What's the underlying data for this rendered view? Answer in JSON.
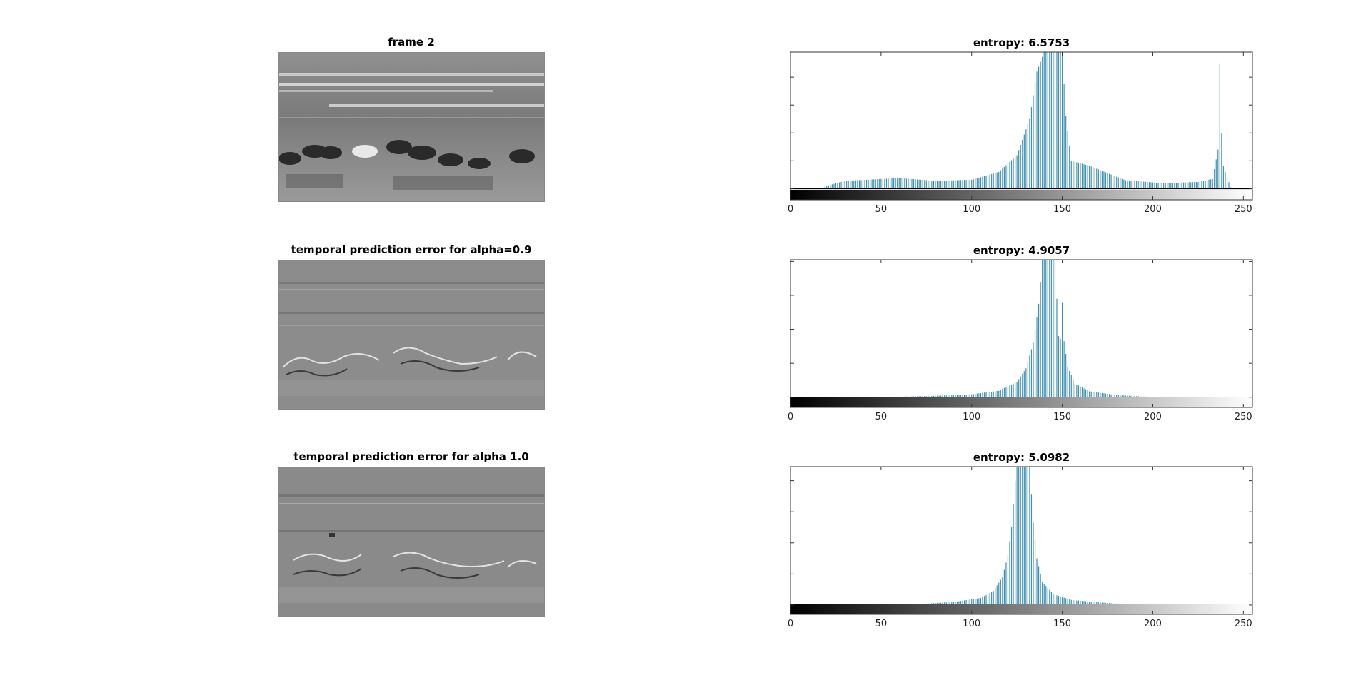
{
  "panels": [
    {
      "title": "frame 2",
      "kind": "frame"
    },
    {
      "title": "temporal prediction error for alpha=0.9",
      "kind": "error"
    },
    {
      "title": "temporal prediction error for alpha 1.0",
      "kind": "error"
    }
  ],
  "chart_data": [
    {
      "type": "bar",
      "title": "entropy: 6.5753",
      "xlim": [
        0,
        255
      ],
      "ylim": [
        -400,
        4900
      ],
      "xticks": [
        0,
        50,
        100,
        150,
        200,
        250
      ],
      "yticks": [
        0,
        1000,
        2000,
        3000,
        4000
      ],
      "colorbar": "grayscale",
      "color": "#3f8fb3",
      "peaks": [
        {
          "x": 143,
          "y": 4900
        },
        {
          "x": 146,
          "y": 4900
        },
        {
          "x": 237,
          "y": 4500
        },
        {
          "x": 238,
          "y": 2000
        }
      ],
      "profile": [
        [
          0,
          0
        ],
        [
          17,
          0
        ],
        [
          20,
          100
        ],
        [
          30,
          280
        ],
        [
          60,
          380
        ],
        [
          80,
          280
        ],
        [
          100,
          320
        ],
        [
          115,
          600
        ],
        [
          125,
          1200
        ],
        [
          132,
          2500
        ],
        [
          136,
          4200
        ],
        [
          140,
          4900
        ],
        [
          150,
          4900
        ],
        [
          152,
          2600
        ],
        [
          155,
          1000
        ],
        [
          165,
          820
        ],
        [
          185,
          300
        ],
        [
          205,
          200
        ],
        [
          225,
          240
        ],
        [
          233,
          350
        ],
        [
          236,
          1400
        ],
        [
          240,
          600
        ],
        [
          243,
          50
        ],
        [
          246,
          0
        ],
        [
          255,
          0
        ]
      ]
    },
    {
      "type": "bar",
      "title": "entropy: 4.9057",
      "xlim": [
        0,
        255
      ],
      "ylim": [
        -600,
        8100
      ],
      "xticks": [
        0,
        50,
        100,
        150,
        200,
        250
      ],
      "yticks": [
        0,
        2000,
        4000,
        6000,
        8000
      ],
      "colorbar": "grayscale",
      "color": "#3f8fb3",
      "peaks": [
        {
          "x": 150,
          "y": 5600
        },
        {
          "x": 148,
          "y": 3600
        }
      ],
      "profile": [
        [
          0,
          0
        ],
        [
          45,
          0
        ],
        [
          60,
          30
        ],
        [
          80,
          80
        ],
        [
          100,
          170
        ],
        [
          115,
          380
        ],
        [
          125,
          900
        ],
        [
          130,
          1700
        ],
        [
          134,
          3200
        ],
        [
          137,
          5500
        ],
        [
          139,
          8100
        ],
        [
          146,
          8100
        ],
        [
          148,
          3500
        ],
        [
          151,
          3300
        ],
        [
          153,
          1800
        ],
        [
          157,
          800
        ],
        [
          165,
          350
        ],
        [
          180,
          120
        ],
        [
          195,
          40
        ],
        [
          205,
          0
        ],
        [
          255,
          0
        ]
      ]
    },
    {
      "type": "bar",
      "title": "entropy: 5.0982",
      "xlim": [
        0,
        255
      ],
      "ylim": [
        -600,
        8900
      ],
      "xticks": [
        0,
        50,
        100,
        150,
        200,
        250
      ],
      "yticks": [
        0,
        2000,
        4000,
        6000,
        8000
      ],
      "colorbar": "grayscale",
      "color": "#3f8fb3",
      "peaks": [],
      "profile": [
        [
          0,
          0
        ],
        [
          55,
          0
        ],
        [
          70,
          60
        ],
        [
          90,
          200
        ],
        [
          105,
          450
        ],
        [
          112,
          900
        ],
        [
          117,
          1800
        ],
        [
          120,
          3200
        ],
        [
          122,
          5000
        ],
        [
          124,
          8000
        ],
        [
          125,
          8900
        ],
        [
          132,
          8900
        ],
        [
          134,
          5300
        ],
        [
          136,
          3000
        ],
        [
          139,
          1500
        ],
        [
          145,
          700
        ],
        [
          155,
          330
        ],
        [
          170,
          170
        ],
        [
          185,
          60
        ],
        [
          200,
          10
        ],
        [
          205,
          0
        ],
        [
          255,
          0
        ]
      ]
    }
  ]
}
